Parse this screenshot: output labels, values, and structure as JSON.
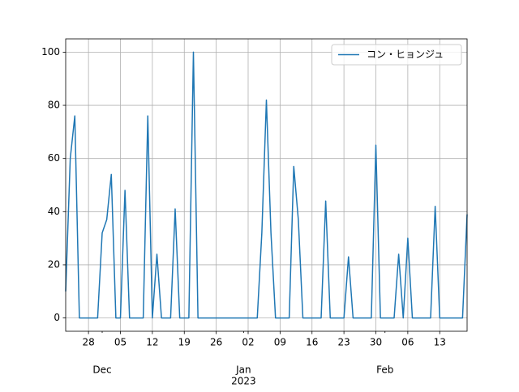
{
  "chart_data": {
    "type": "line",
    "x": [
      "2022-11-23",
      "2022-11-24",
      "2022-11-25",
      "2022-11-26",
      "2022-11-27",
      "2022-11-28",
      "2022-11-29",
      "2022-11-30",
      "2022-12-01",
      "2022-12-02",
      "2022-12-03",
      "2022-12-04",
      "2022-12-05",
      "2022-12-06",
      "2022-12-07",
      "2022-12-08",
      "2022-12-09",
      "2022-12-10",
      "2022-12-11",
      "2022-12-12",
      "2022-12-13",
      "2022-12-14",
      "2022-12-15",
      "2022-12-16",
      "2022-12-17",
      "2022-12-18",
      "2022-12-19",
      "2022-12-20",
      "2022-12-21",
      "2022-12-22",
      "2022-12-23",
      "2022-12-24",
      "2022-12-25",
      "2022-12-26",
      "2022-12-27",
      "2022-12-28",
      "2022-12-29",
      "2022-12-30",
      "2022-12-31",
      "2023-01-01",
      "2023-01-02",
      "2023-01-03",
      "2023-01-04",
      "2023-01-05",
      "2023-01-06",
      "2023-01-07",
      "2023-01-08",
      "2023-01-09",
      "2023-01-10",
      "2023-01-11",
      "2023-01-12",
      "2023-01-13",
      "2023-01-14",
      "2023-01-15",
      "2023-01-16",
      "2023-01-17",
      "2023-01-18",
      "2023-01-19",
      "2023-01-20",
      "2023-01-21",
      "2023-01-22",
      "2023-01-23",
      "2023-01-24",
      "2023-01-25",
      "2023-01-26",
      "2023-01-27",
      "2023-01-28",
      "2023-01-29",
      "2023-01-30",
      "2023-01-31",
      "2023-02-01",
      "2023-02-02",
      "2023-02-03",
      "2023-02-04",
      "2023-02-05",
      "2023-02-06",
      "2023-02-07",
      "2023-02-08",
      "2023-02-09",
      "2023-02-10",
      "2023-02-11",
      "2023-02-12",
      "2023-02-13",
      "2023-02-14",
      "2023-02-15",
      "2023-02-16",
      "2023-02-17",
      "2023-02-18",
      "2023-02-19"
    ],
    "series": [
      {
        "name": "コン・ヒョンジュ",
        "color": "#1f77b4",
        "values": [
          10,
          60,
          76,
          0,
          0,
          0,
          0,
          0,
          32,
          37,
          54,
          0,
          0,
          48,
          0,
          0,
          0,
          0,
          76,
          0,
          24,
          0,
          0,
          0,
          41,
          0,
          0,
          0,
          100,
          0,
          0,
          0,
          0,
          0,
          0,
          0,
          0,
          0,
          0,
          0,
          0,
          0,
          0,
          32,
          82,
          32,
          0,
          0,
          0,
          0,
          57,
          37,
          0,
          0,
          0,
          0,
          0,
          44,
          0,
          0,
          0,
          0,
          23,
          0,
          0,
          0,
          0,
          0,
          65,
          0,
          0,
          0,
          0,
          24,
          0,
          30,
          0,
          0,
          0,
          0,
          0,
          42,
          0,
          0,
          0,
          0,
          0,
          0,
          39
        ]
      }
    ],
    "xlim": [
      "2022-11-23",
      "2023-02-19"
    ],
    "xticks": [
      {
        "value": "2022-11-28",
        "label": "28"
      },
      {
        "value": "2022-12-05",
        "label": "05"
      },
      {
        "value": "2022-12-12",
        "label": "12"
      },
      {
        "value": "2022-12-19",
        "label": "19"
      },
      {
        "value": "2022-12-26",
        "label": "26"
      },
      {
        "value": "2023-01-02",
        "label": "02"
      },
      {
        "value": "2023-01-09",
        "label": "09"
      },
      {
        "value": "2023-01-16",
        "label": "16"
      },
      {
        "value": "2023-01-23",
        "label": "23"
      },
      {
        "value": "2023-01-30",
        "label": "30"
      },
      {
        "value": "2023-02-06",
        "label": "06"
      },
      {
        "value": "2023-02-13",
        "label": "13"
      }
    ],
    "xticks_month": [
      {
        "value": "2022-12-01",
        "label": "Dec"
      },
      {
        "value": "2023-01-01",
        "label": "Jan"
      },
      {
        "value": "2023-02-01",
        "label": "Feb"
      }
    ],
    "x_year_label": {
      "value": "2023-01-01",
      "label": "2023"
    },
    "ylim": [
      -5,
      105
    ],
    "yticks": [
      0,
      20,
      40,
      60,
      80,
      100
    ],
    "grid": true,
    "legend": "upper right"
  }
}
